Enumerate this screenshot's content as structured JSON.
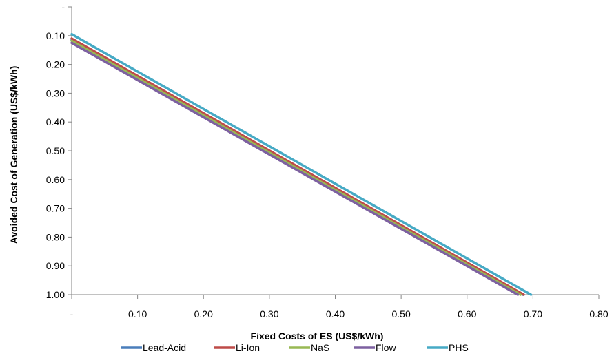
{
  "chart_data": {
    "type": "line",
    "xlabel": "Fixed Costs of ES (US$/kWh)",
    "ylabel": "Avoided Cost of Generation (US$/kWh)",
    "x_tick_labels": [
      "-",
      "0.10",
      "0.20",
      "0.30",
      "0.40",
      "0.50",
      "0.60",
      "0.70",
      "0.80"
    ],
    "y_tick_labels": [
      "-",
      "0.10",
      "0.20",
      "0.30",
      "0.40",
      "0.50",
      "0.60",
      "0.70",
      "0.80",
      "0.90",
      "1.00"
    ],
    "x_ticks": [
      0,
      0.1,
      0.2,
      0.3,
      0.4,
      0.5,
      0.6,
      0.7,
      0.8
    ],
    "y_ticks": [
      0,
      0.1,
      0.2,
      0.3,
      0.4,
      0.5,
      0.6,
      0.7,
      0.8,
      0.9,
      1.0
    ],
    "xlim": [
      0,
      0.8
    ],
    "ylim": [
      0,
      1.0
    ],
    "y_axis_reversed": true,
    "grid": false,
    "legend_position": "bottom",
    "series": [
      {
        "name": "Lead-Acid",
        "color": "#4A7EBB",
        "x": [
          0,
          0.685
        ],
        "y": [
          0.115,
          1.0
        ]
      },
      {
        "name": "Li-Ion",
        "color": "#BE4B48",
        "x": [
          0,
          0.686
        ],
        "y": [
          0.11,
          1.0
        ]
      },
      {
        "name": "NaS",
        "color": "#98B954",
        "x": [
          0,
          0.681
        ],
        "y": [
          0.118,
          1.0
        ]
      },
      {
        "name": "Flow",
        "color": "#7D60A0",
        "x": [
          0,
          0.677
        ],
        "y": [
          0.125,
          1.0
        ]
      },
      {
        "name": "PHS",
        "color": "#46AAC5",
        "x": [
          0,
          0.697
        ],
        "y": [
          0.095,
          1.0
        ]
      }
    ]
  }
}
